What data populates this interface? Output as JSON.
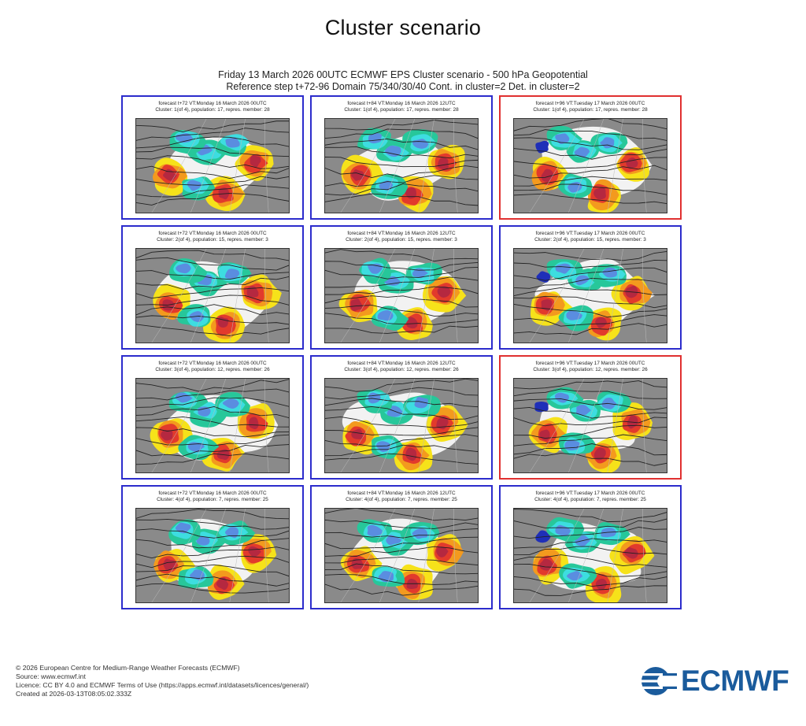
{
  "page": {
    "title": "Cluster scenario"
  },
  "figure": {
    "header_line1": "Friday 13 March 2026 00UTC ECMWF EPS Cluster scenario - 500 hPa Geopotential",
    "header_line2": "Reference step t+72-96 Domain 75/340/30/40 Cont. in cluster=2 Det. in cluster=2"
  },
  "colors": {
    "cluster_border": "#2c2ccc",
    "deterministic_border": "#e03030",
    "logo": "#1a5b9c"
  },
  "panels": [
    {
      "line1": "forecast t+72 VT:Monday 16 March 2026 00UTC",
      "line2": "Cluster: 1(of 4), population: 17, repres. member: 28",
      "highlight": false
    },
    {
      "line1": "forecast t+84 VT:Monday 16 March 2026 12UTC",
      "line2": "Cluster: 1(of 4), population: 17, repres. member: 28",
      "highlight": false
    },
    {
      "line1": "forecast t+96 VT:Tuesday 17 March 2026 00UTC",
      "line2": "Cluster: 1(of 4), population: 17, repres. member: 28",
      "highlight": true
    },
    {
      "line1": "forecast t+72 VT:Monday 16 March 2026 00UTC",
      "line2": "Cluster: 2(of 4), population: 15, repres. member: 3",
      "highlight": false
    },
    {
      "line1": "forecast t+84 VT:Monday 16 March 2026 12UTC",
      "line2": "Cluster: 2(of 4), population: 15, repres. member: 3",
      "highlight": false
    },
    {
      "line1": "forecast t+96 VT:Tuesday 17 March 2026 00UTC",
      "line2": "Cluster: 2(of 4), population: 15, repres. member: 3",
      "highlight": false
    },
    {
      "line1": "forecast t+72 VT:Monday 16 March 2026 00UTC",
      "line2": "Cluster: 3(of 4), population: 12, repres. member: 26",
      "highlight": false
    },
    {
      "line1": "forecast t+84 VT:Monday 16 March 2026 12UTC",
      "line2": "Cluster: 3(of 4), population: 12, repres. member: 26",
      "highlight": false
    },
    {
      "line1": "forecast t+96 VT:Tuesday 17 March 2026 00UTC",
      "line2": "Cluster: 3(of 4), population: 12, repres. member: 26",
      "highlight": true
    },
    {
      "line1": "forecast t+72 VT:Monday 16 March 2026 00UTC",
      "line2": "Cluster: 4(of 4), population: 7, repres. member: 25",
      "highlight": false
    },
    {
      "line1": "forecast t+84 VT:Monday 16 March 2026 12UTC",
      "line2": "Cluster: 4(of 4), population: 7, repres. member: 25",
      "highlight": false
    },
    {
      "line1": "forecast t+96 VT:Tuesday 17 March 2026 00UTC",
      "line2": "Cluster: 4(of 4), population: 7, repres. member: 25",
      "highlight": false
    }
  ],
  "footer": {
    "copyright": "© 2026 European Centre for Medium-Range Weather Forecasts (ECMWF)",
    "source": "Source: www.ecmwf.int",
    "licence": "Licence: CC BY 4.0 and ECMWF Terms of Use (https://apps.ecmwf.int/datasets/licences/general/)",
    "created": "Created at 2026-03-13T08:05:02.333Z"
  },
  "logo": {
    "text": "ECMWF"
  }
}
